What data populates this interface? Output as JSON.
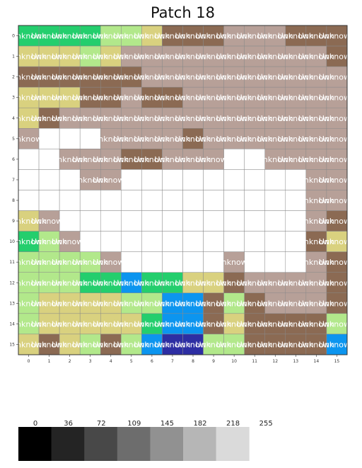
{
  "chart_data": {
    "type": "heatmap",
    "title": "Patch 18",
    "xlabel": "",
    "ylabel": "",
    "x_ticks": [
      "0",
      "1",
      "2",
      "3",
      "4",
      "5",
      "6",
      "7",
      "8",
      "9",
      "10",
      "11",
      "12",
      "13",
      "14",
      "15"
    ],
    "y_ticks": [
      "0",
      "1",
      "2",
      "3",
      "4",
      "5",
      "6",
      "7",
      "8",
      "9",
      "10",
      "11",
      "12",
      "13",
      "14",
      "15"
    ],
    "cell_label": "Unknown",
    "palette": {
      "R": "#8b6a53",
      "T": "#b7a098",
      "Y": "#d9d17f",
      "L": "#b2e88b",
      "G": "#24ce6d",
      "B": "#0c95ef",
      "N": "#2d2ea3",
      "W": "#ffffff"
    },
    "grid": [
      "GGGGLLYRRRTTTRRR",
      "YYYLYTTTTTTTTTTR",
      "RRRRRRTTTTTTTTTT",
      "YYYRRTRRTTTTTTTT",
      "YRTTTTTTTTTTTTTT",
      "TWWWTTTTRTTTTTTT",
      "WWTTTRRTTTWWTTTT",
      "WWWTTWWWWWWWWWTT",
      "WWWWWWWWWWWWWWTT",
      "YTWWWWWWWWWWWWTR",
      "GLTWWWWWWWWWWWRY",
      "LLLLTWWWWWTWWWTR",
      "LLLGGBGGYYRTTTTR",
      "LYYYYLLBBRLRTTTR",
      "LYYYYYGBBRYRRRRL",
      "YRYLRLBNNLLRRRRB"
    ],
    "grid_lines": true,
    "colorbar": {
      "ticks": [
        "0",
        "36",
        "72",
        "109",
        "145",
        "182",
        "218",
        "255"
      ],
      "values": [
        0,
        36,
        72,
        109,
        145,
        182,
        218
      ],
      "colors": [
        "#000000",
        "#242424",
        "#484848",
        "#6d6d6d",
        "#919191",
        "#b6b6b6",
        "#dadada"
      ]
    }
  }
}
